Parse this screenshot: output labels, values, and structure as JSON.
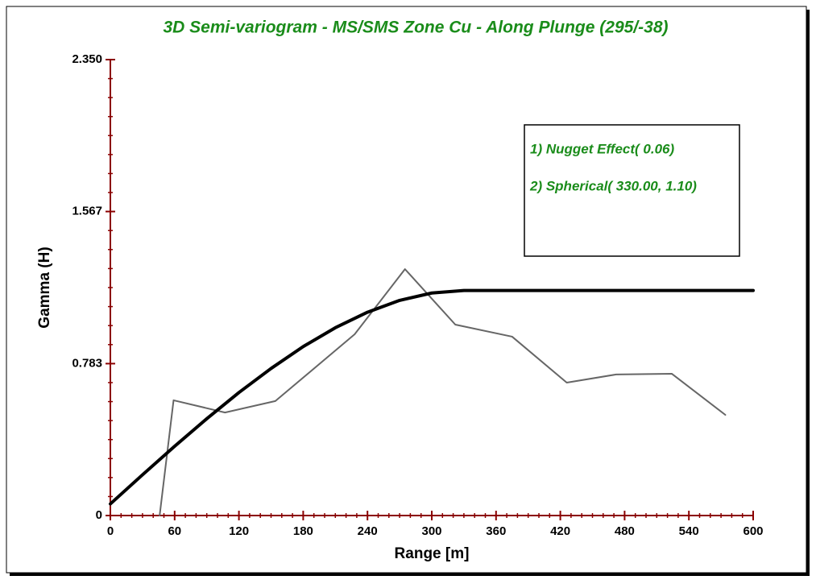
{
  "chart_data": {
    "type": "line",
    "title": "3D Semi-variogram - MS/SMS Zone Cu - Along Plunge (295/-38)",
    "x_label": "Range [m]",
    "y_label": "Gamma (H)",
    "legend_entries": [
      "1) Nugget Effect( 0.06)",
      "2) Spherical( 330.00, 1.10)"
    ],
    "xlim": [
      0,
      600
    ],
    "ylim": [
      0,
      2.35
    ],
    "xticks": [
      0,
      60,
      120,
      180,
      240,
      300,
      360,
      420,
      480,
      540,
      600
    ],
    "yticks": [
      0,
      0.783,
      1.567,
      {
        "value": 2.35,
        "label": "2.350"
      }
    ],
    "grid": false,
    "series": [
      {
        "color": "#666666",
        "x": [
          46,
          59,
          107,
          154,
          228,
          275,
          322,
          375,
          426,
          472,
          524,
          574
        ],
        "values": [
          0,
          0.594,
          0.531,
          0.59,
          0.934,
          1.27,
          0.984,
          0.922,
          0.685,
          0.727,
          0.731,
          0.519
        ]
      },
      {
        "color": "#000000",
        "x": [
          0,
          30,
          60,
          90,
          120,
          150,
          180,
          210,
          240,
          270,
          300,
          330,
          600
        ],
        "values": [
          0.06,
          0.21,
          0.357,
          0.499,
          0.634,
          0.758,
          0.871,
          0.968,
          1.048,
          1.109,
          1.147,
          1.16,
          1.16
        ]
      }
    ]
  }
}
